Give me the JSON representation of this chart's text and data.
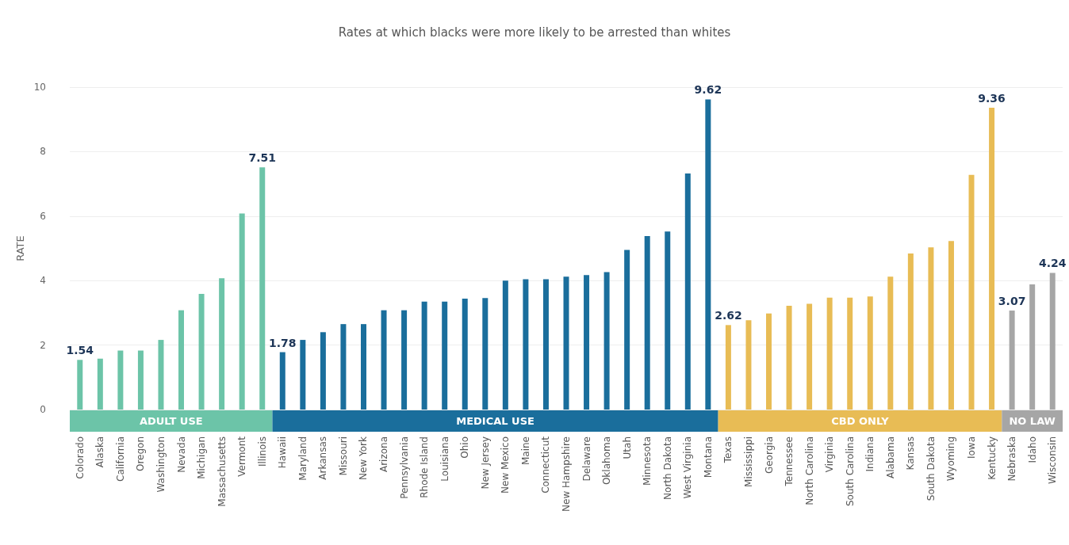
{
  "chart_data": {
    "type": "bar",
    "title": "Rates at which blacks were more likely to be arrested than whites",
    "ylabel": "RATE",
    "categories": [
      "Colorado",
      "Alaska",
      "California",
      "Oregon",
      "Washington",
      "Nevada",
      "Michigan",
      "Massachusetts",
      "Vermont",
      "Illinois",
      "Hawaii",
      "Maryland",
      "Arkansas",
      "Missouri",
      "New York",
      "Arizona",
      "Pennsylvania",
      "Rhode Island",
      "Louisiana",
      "Ohio",
      "New Jersey",
      "New Mexico",
      "Maine",
      "Connecticut",
      "New Hampshire",
      "Delaware",
      "Oklahoma",
      "Utah",
      "Minnesota",
      "North Dakota",
      "West Virginia",
      "Montana",
      "Texas",
      "Mississippi",
      "Georgia",
      "Tennessee",
      "North Carolina",
      "Virginia",
      "South Carolina",
      "Indiana",
      "Alabama",
      "Kansas",
      "South Dakota",
      "Wyoming",
      "Iowa",
      "Kentucky",
      "Nebraska",
      "Idaho",
      "Wisconsin"
    ],
    "series": [
      {
        "name": "ADULT USE",
        "color": "#6cc4a8",
        "values": [
          1.54,
          1.58,
          1.83,
          1.83,
          2.16,
          3.08,
          3.59,
          4.07,
          6.08,
          7.51,
          null,
          null,
          null,
          null,
          null,
          null,
          null,
          null,
          null,
          null,
          null,
          null,
          null,
          null,
          null,
          null,
          null,
          null,
          null,
          null,
          null,
          null,
          null,
          null,
          null,
          null,
          null,
          null,
          null,
          null,
          null,
          null,
          null,
          null,
          null,
          null,
          null,
          null,
          null
        ],
        "value_labels": [
          "1.54",
          null,
          null,
          null,
          null,
          null,
          null,
          null,
          null,
          "7.51",
          null,
          null,
          null,
          null,
          null,
          null,
          null,
          null,
          null,
          null,
          null,
          null,
          null,
          null,
          null,
          null,
          null,
          null,
          null,
          null,
          null,
          null,
          null,
          null,
          null,
          null,
          null,
          null,
          null,
          null,
          null,
          null,
          null,
          null,
          null,
          null,
          null,
          null,
          null
        ]
      },
      {
        "name": "MEDICAL USE",
        "color": "#1a6e9c",
        "values": [
          null,
          null,
          null,
          null,
          null,
          null,
          null,
          null,
          null,
          null,
          1.78,
          2.16,
          2.4,
          2.65,
          2.65,
          3.08,
          3.08,
          3.35,
          3.35,
          3.44,
          3.46,
          4.0,
          4.04,
          4.04,
          4.12,
          4.17,
          4.26,
          4.95,
          5.38,
          5.52,
          7.32,
          9.62,
          null,
          null,
          null,
          null,
          null,
          null,
          null,
          null,
          null,
          null,
          null,
          null,
          null,
          null,
          null,
          null,
          null
        ],
        "value_labels": [
          null,
          null,
          null,
          null,
          null,
          null,
          null,
          null,
          null,
          null,
          "1.78",
          null,
          null,
          null,
          null,
          null,
          null,
          null,
          null,
          null,
          null,
          null,
          null,
          null,
          null,
          null,
          null,
          null,
          null,
          null,
          null,
          "9.62",
          null,
          null,
          null,
          null,
          null,
          null,
          null,
          null,
          null,
          null,
          null,
          null,
          null,
          null,
          null,
          null,
          null
        ]
      },
      {
        "name": "CBD ONLY",
        "color": "#e8bc55",
        "values": [
          null,
          null,
          null,
          null,
          null,
          null,
          null,
          null,
          null,
          null,
          null,
          null,
          null,
          null,
          null,
          null,
          null,
          null,
          null,
          null,
          null,
          null,
          null,
          null,
          null,
          null,
          null,
          null,
          null,
          null,
          null,
          null,
          2.62,
          2.77,
          2.98,
          3.22,
          3.28,
          3.47,
          3.47,
          3.51,
          4.12,
          4.84,
          5.03,
          5.23,
          7.28,
          9.36,
          null,
          null,
          null
        ],
        "value_labels": [
          null,
          null,
          null,
          null,
          null,
          null,
          null,
          null,
          null,
          null,
          null,
          null,
          null,
          null,
          null,
          null,
          null,
          null,
          null,
          null,
          null,
          null,
          null,
          null,
          null,
          null,
          null,
          null,
          null,
          null,
          null,
          null,
          "2.62",
          null,
          null,
          null,
          null,
          null,
          null,
          null,
          null,
          null,
          null,
          null,
          null,
          "9.36",
          null,
          null,
          null
        ]
      },
      {
        "name": "NO LAW",
        "color": "#a6a6a6",
        "values": [
          null,
          null,
          null,
          null,
          null,
          null,
          null,
          null,
          null,
          null,
          null,
          null,
          null,
          null,
          null,
          null,
          null,
          null,
          null,
          null,
          null,
          null,
          null,
          null,
          null,
          null,
          null,
          null,
          null,
          null,
          null,
          null,
          null,
          null,
          null,
          null,
          null,
          null,
          null,
          null,
          null,
          null,
          null,
          null,
          null,
          null,
          3.07,
          3.88,
          4.24
        ],
        "value_labels": [
          null,
          null,
          null,
          null,
          null,
          null,
          null,
          null,
          null,
          null,
          null,
          null,
          null,
          null,
          null,
          null,
          null,
          null,
          null,
          null,
          null,
          null,
          null,
          null,
          null,
          null,
          null,
          null,
          null,
          null,
          null,
          null,
          null,
          null,
          null,
          null,
          null,
          null,
          null,
          null,
          null,
          null,
          null,
          null,
          null,
          null,
          "3.07",
          null,
          "4.24"
        ]
      }
    ],
    "ylim": [
      0,
      10
    ],
    "yticks": [
      0,
      2,
      4,
      6,
      8,
      10
    ],
    "grid": "y",
    "legend": false
  }
}
